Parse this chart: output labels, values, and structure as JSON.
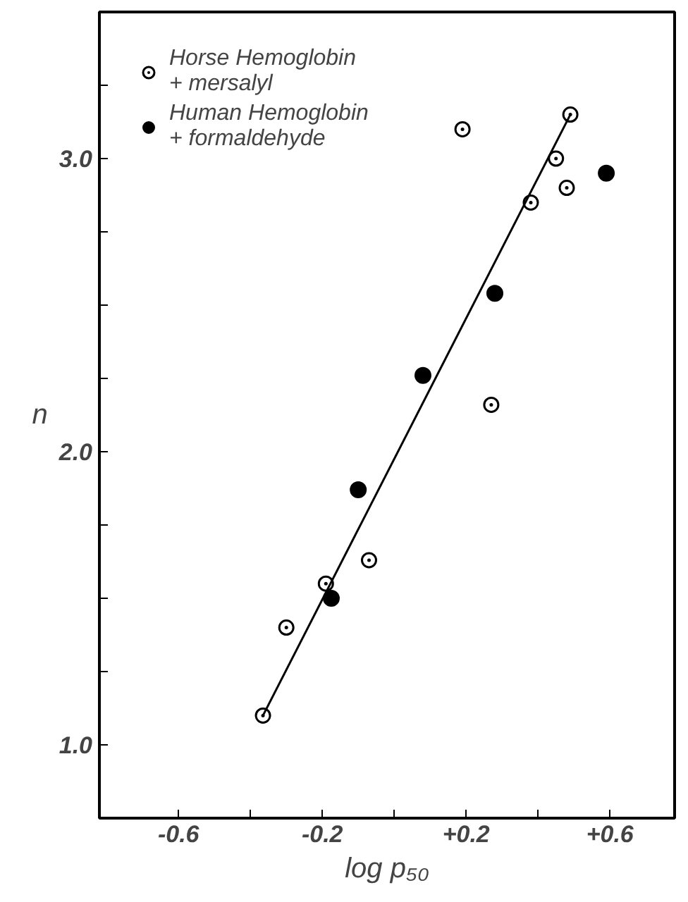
{
  "chart_data": {
    "type": "scatter",
    "xlabel": "log p₅₀",
    "ylabel": "n",
    "xlim": [
      -0.82,
      0.78
    ],
    "ylim": [
      0.75,
      3.5
    ],
    "xticks": [
      {
        "value": -0.6,
        "label": "-0.6"
      },
      {
        "value": -0.4,
        "label": null
      },
      {
        "value": -0.2,
        "label": "-0.2"
      },
      {
        "value": 0,
        "label": null
      },
      {
        "value": 0.2,
        "label": "+0.2"
      },
      {
        "value": 0.4,
        "label": null
      },
      {
        "value": 0.6,
        "label": "+0.6"
      }
    ],
    "yticks": [
      {
        "value": 1,
        "label": "1.0"
      },
      {
        "value": 1.25,
        "label": null
      },
      {
        "value": 1.5,
        "label": null
      },
      {
        "value": 1.75,
        "label": null
      },
      {
        "value": 2,
        "label": "2.0"
      },
      {
        "value": 2.25,
        "label": null
      },
      {
        "value": 2.5,
        "label": null
      },
      {
        "value": 2.75,
        "label": null
      },
      {
        "value": 3,
        "label": "3.0"
      },
      {
        "value": 3.25,
        "label": null
      }
    ],
    "grid": false,
    "legend": "top left",
    "series": [
      {
        "name": "Horse Hemoglobin\n+ mersalyl",
        "color": "#000000",
        "marker": "circle_dot",
        "x": [
          -0.365,
          -0.3,
          -0.19,
          -0.07,
          0.19,
          0.27,
          0.38,
          0.45,
          0.48,
          0.49
        ],
        "values": [
          1.1,
          1.4,
          1.55,
          1.63,
          3.1,
          2.16,
          2.85,
          3.0,
          2.9,
          3.15
        ]
      },
      {
        "name": "Human Hemoglobin\n+ formaldehyde",
        "color": "#000000",
        "marker": "circle",
        "x": [
          -0.175,
          -0.1,
          0.08,
          0.28,
          0.59
        ],
        "values": [
          1.5,
          1.87,
          2.26,
          2.54,
          2.95
        ]
      },
      {
        "type": "line",
        "color": "#000000",
        "x": [
          -0.365,
          0.49
        ],
        "values": [
          1.1,
          3.15
        ]
      }
    ]
  }
}
